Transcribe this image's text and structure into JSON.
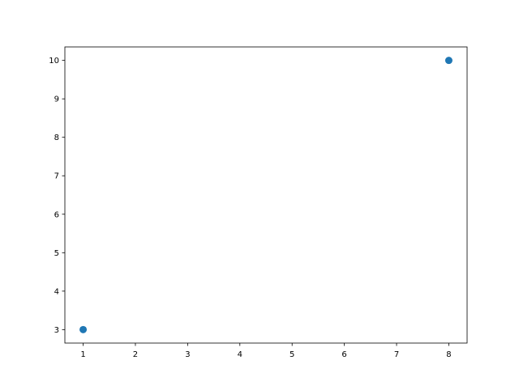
{
  "chart_data": {
    "type": "scatter",
    "title": "",
    "xlabel": "",
    "ylabel": "",
    "x": [
      1,
      8
    ],
    "y": [
      3,
      10
    ],
    "xlim": [
      0.65,
      8.35
    ],
    "ylim": [
      2.65,
      10.35
    ],
    "xticks": [
      "1",
      "2",
      "3",
      "4",
      "5",
      "6",
      "7",
      "8"
    ],
    "yticks": [
      "3",
      "4",
      "5",
      "6",
      "7",
      "8",
      "9",
      "10"
    ],
    "grid": false,
    "marker_color": "#1f77b4"
  }
}
